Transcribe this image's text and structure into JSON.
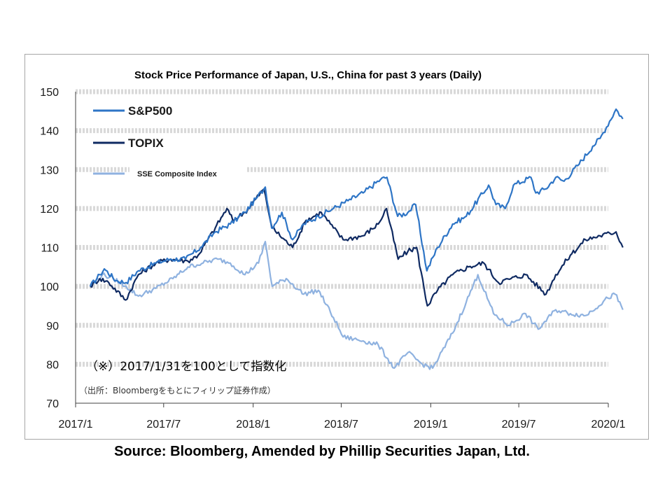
{
  "chart_data": {
    "type": "line",
    "title": "Stock Price Performance of Japan, U.S., China for past 3 years (Daily)",
    "xlabel": "",
    "ylabel": "",
    "ylim": [
      70,
      150
    ],
    "yticks": [
      70,
      80,
      90,
      100,
      110,
      120,
      130,
      140,
      150
    ],
    "xlim": [
      "2017-01",
      "2020-01"
    ],
    "xticks": [
      "2017/1",
      "2017/7",
      "2018/1",
      "2018/7",
      "2019/1",
      "2019/7",
      "2020/1"
    ],
    "grid": "horizontal dashed bands",
    "legend_position": "top-left",
    "annotations": [
      "（※）2017/1/31を100として指数化",
      "（出所：Bloombergをもとにフィリップ証券作成）"
    ],
    "series": [
      {
        "name": "S&P500",
        "color": "#2e75c6",
        "points": [
          [
            "2017-01-31",
            100
          ],
          [
            "2017-02-20",
            103
          ],
          [
            "2017-03-01",
            104.5
          ],
          [
            "2017-03-25",
            101.5
          ],
          [
            "2017-04-15",
            101
          ],
          [
            "2017-05-10",
            104
          ],
          [
            "2017-06-15",
            106
          ],
          [
            "2017-07-15",
            107
          ],
          [
            "2017-08-15",
            107
          ],
          [
            "2017-09-15",
            110
          ],
          [
            "2017-10-15",
            114
          ],
          [
            "2017-11-15",
            116
          ],
          [
            "2017-12-15",
            119
          ],
          [
            "2018-01-10",
            123
          ],
          [
            "2018-01-26",
            125.5
          ],
          [
            "2018-02-08",
            115
          ],
          [
            "2018-03-01",
            119
          ],
          [
            "2018-03-23",
            112
          ],
          [
            "2018-04-15",
            116
          ],
          [
            "2018-05-15",
            118
          ],
          [
            "2018-06-15",
            120
          ],
          [
            "2018-07-15",
            122
          ],
          [
            "2018-08-15",
            124
          ],
          [
            "2018-09-20",
            127.5
          ],
          [
            "2018-10-03",
            128
          ],
          [
            "2018-10-25",
            118
          ],
          [
            "2018-11-15",
            119
          ],
          [
            "2018-12-01",
            121
          ],
          [
            "2018-12-24",
            104
          ],
          [
            "2019-01-15",
            110
          ],
          [
            "2019-02-15",
            116
          ],
          [
            "2019-03-15",
            118
          ],
          [
            "2019-04-30",
            126
          ],
          [
            "2019-05-15",
            121
          ],
          [
            "2019-06-03",
            120
          ],
          [
            "2019-06-20",
            126
          ],
          [
            "2019-07-26",
            128
          ],
          [
            "2019-08-05",
            124
          ],
          [
            "2019-08-25",
            125
          ],
          [
            "2019-09-15",
            128
          ],
          [
            "2019-10-02",
            127
          ],
          [
            "2019-10-30",
            131
          ],
          [
            "2019-11-30",
            136
          ],
          [
            "2019-12-15",
            138
          ],
          [
            "2020-01-17",
            145.5
          ],
          [
            "2020-01-31",
            143
          ]
        ]
      },
      {
        "name": "TOPIX",
        "color": "#0f2a62",
        "points": [
          [
            "2017-01-31",
            100
          ],
          [
            "2017-02-20",
            102
          ],
          [
            "2017-03-10",
            101
          ],
          [
            "2017-04-14",
            96.5
          ],
          [
            "2017-05-10",
            103
          ],
          [
            "2017-06-15",
            106
          ],
          [
            "2017-07-15",
            107
          ],
          [
            "2017-08-20",
            106.5
          ],
          [
            "2017-09-10",
            108
          ],
          [
            "2017-10-15",
            115
          ],
          [
            "2017-11-08",
            120
          ],
          [
            "2017-11-20",
            117
          ],
          [
            "2017-12-15",
            119
          ],
          [
            "2018-01-23",
            125
          ],
          [
            "2018-02-09",
            115
          ],
          [
            "2018-03-23",
            110
          ],
          [
            "2018-04-20",
            117
          ],
          [
            "2018-05-21",
            119
          ],
          [
            "2018-06-15",
            115
          ],
          [
            "2018-07-05",
            112
          ],
          [
            "2018-08-15",
            113
          ],
          [
            "2018-09-15",
            116
          ],
          [
            "2018-10-02",
            120
          ],
          [
            "2018-10-26",
            107
          ],
          [
            "2018-11-15",
            109
          ],
          [
            "2018-12-03",
            110
          ],
          [
            "2018-12-25",
            95
          ],
          [
            "2019-01-15",
            99
          ],
          [
            "2019-02-15",
            103
          ],
          [
            "2019-03-20",
            105
          ],
          [
            "2019-04-20",
            106
          ],
          [
            "2019-05-20",
            101
          ],
          [
            "2019-06-15",
            102
          ],
          [
            "2019-07-15",
            103
          ],
          [
            "2019-08-26",
            98
          ],
          [
            "2019-09-15",
            103
          ],
          [
            "2019-10-15",
            108
          ],
          [
            "2019-11-15",
            112
          ],
          [
            "2019-12-15",
            113
          ],
          [
            "2020-01-17",
            114
          ],
          [
            "2020-01-31",
            110
          ]
        ]
      },
      {
        "name": "SSE Composite Index",
        "color": "#8fb2e0",
        "points": [
          [
            "2017-01-31",
            100
          ],
          [
            "2017-02-25",
            103
          ],
          [
            "2017-03-20",
            102
          ],
          [
            "2017-04-15",
            100
          ],
          [
            "2017-05-10",
            97.5
          ],
          [
            "2017-06-15",
            99.5
          ],
          [
            "2017-07-20",
            102
          ],
          [
            "2017-08-20",
            105
          ],
          [
            "2017-09-20",
            106
          ],
          [
            "2017-10-20",
            107
          ],
          [
            "2017-11-15",
            106
          ],
          [
            "2017-12-15",
            103
          ],
          [
            "2018-01-12",
            106
          ],
          [
            "2018-01-26",
            111.5
          ],
          [
            "2018-02-09",
            100
          ],
          [
            "2018-03-10",
            102
          ],
          [
            "2018-04-15",
            98
          ],
          [
            "2018-05-15",
            99
          ],
          [
            "2018-06-15",
            92
          ],
          [
            "2018-07-05",
            87
          ],
          [
            "2018-08-15",
            86
          ],
          [
            "2018-09-15",
            85
          ],
          [
            "2018-10-18",
            79
          ],
          [
            "2018-11-15",
            83
          ],
          [
            "2018-12-15",
            80
          ],
          [
            "2019-01-05",
            79
          ],
          [
            "2019-02-15",
            88
          ],
          [
            "2019-03-15",
            96
          ],
          [
            "2019-04-08",
            103
          ],
          [
            "2019-05-10",
            93
          ],
          [
            "2019-06-10",
            90
          ],
          [
            "2019-07-15",
            93
          ],
          [
            "2019-08-10",
            89
          ],
          [
            "2019-09-15",
            94
          ],
          [
            "2019-10-15",
            93
          ],
          [
            "2019-11-15",
            92.5
          ],
          [
            "2019-12-31",
            97
          ],
          [
            "2020-01-15",
            98
          ],
          [
            "2020-01-31",
            94
          ]
        ]
      }
    ]
  },
  "footer": {
    "source": "Source: Bloomberg, Amended by Phillip Securities Japan, Ltd."
  }
}
